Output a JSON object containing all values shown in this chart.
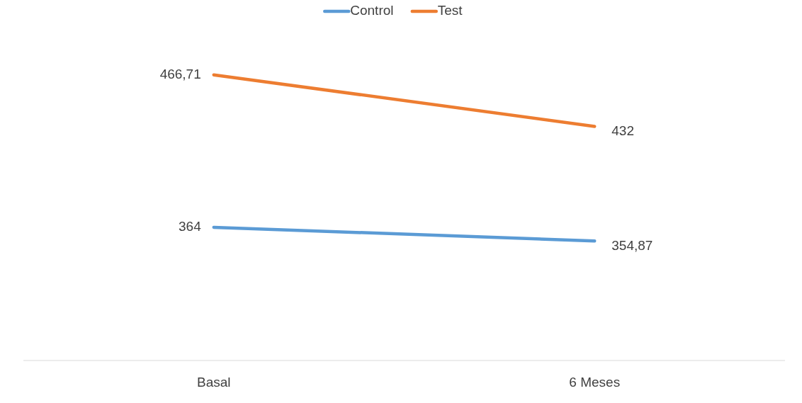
{
  "chart_data": {
    "type": "line",
    "categories": [
      "Basal",
      "6 Meses"
    ],
    "legend": "top",
    "series": [
      {
        "name": "Control",
        "color": "#5b9bd5",
        "values": [
          364,
          354.87
        ],
        "value_labels": [
          "364",
          "354,87"
        ]
      },
      {
        "name": "Test",
        "color": "#ed7d31",
        "values": [
          466.71,
          432
        ],
        "value_labels": [
          "466,71",
          "432"
        ]
      }
    ]
  }
}
